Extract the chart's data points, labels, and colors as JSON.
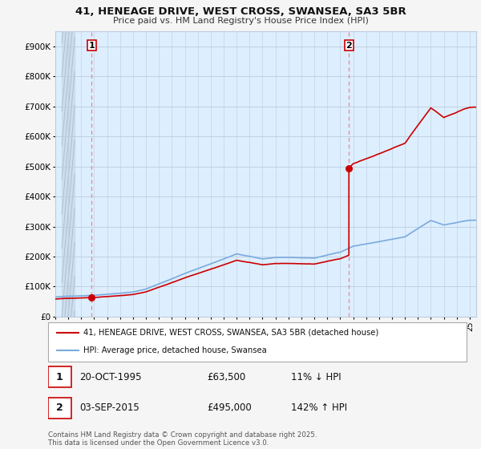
{
  "title_line1": "41, HENEAGE DRIVE, WEST CROSS, SWANSEA, SA3 5BR",
  "title_line2": "Price paid vs. HM Land Registry's House Price Index (HPI)",
  "ylim": [
    0,
    950000
  ],
  "ytick_values": [
    0,
    100000,
    200000,
    300000,
    400000,
    500000,
    600000,
    700000,
    800000,
    900000
  ],
  "ytick_labels": [
    "£0",
    "£100K",
    "£200K",
    "£300K",
    "£400K",
    "£500K",
    "£600K",
    "£700K",
    "£800K",
    "£900K"
  ],
  "sale1_year": 1995.8,
  "sale1_price": 63500,
  "sale2_year": 2015.67,
  "sale2_price": 495000,
  "hpi_line_color": "#7aaadd",
  "price_line_color": "#cc0000",
  "marker_color": "#cc0000",
  "dashed_line_color": "#ee8888",
  "legend_label1": "41, HENEAGE DRIVE, WEST CROSS, SWANSEA, SA3 5BR (detached house)",
  "legend_label2": "HPI: Average price, detached house, Swansea",
  "annotation1_date": "20-OCT-1995",
  "annotation1_price": "£63,500",
  "annotation1_hpi": "11% ↓ HPI",
  "annotation2_date": "03-SEP-2015",
  "annotation2_price": "£495,000",
  "annotation2_hpi": "142% ↑ HPI",
  "footer": "Contains HM Land Registry data © Crown copyright and database right 2025.\nThis data is licensed under the Open Government Licence v3.0.",
  "xlim_start": 1993.5,
  "xlim_end": 2025.5,
  "plot_bg_color": "#ddeeff",
  "hatch_bg_color": "#ccddee",
  "grid_color": "#bbccdd",
  "fig_bg_color": "#f5f5f5"
}
